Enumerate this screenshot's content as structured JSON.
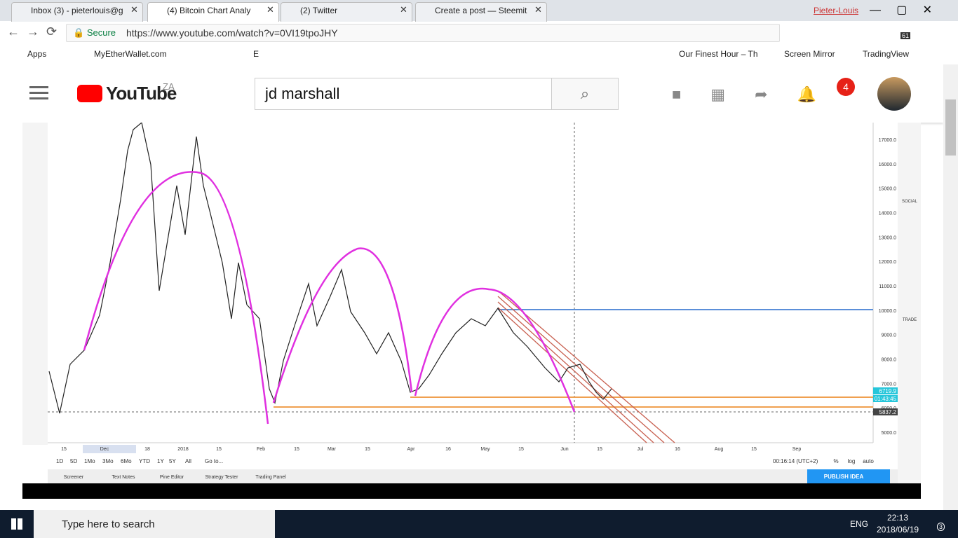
{
  "browser": {
    "tabs": [
      "Inbox (3) - pieterlouis@g",
      "(4) Bitcoin Chart Analy",
      "(2) Twitter",
      "Create a post — Steemit"
    ],
    "user": "Pieter-Louis",
    "secure": "Secure",
    "url": "https://www.youtube.com/watch?v=0VI19tpoJHY",
    "extension_badge": "61",
    "bookmarks": [
      "Apps",
      "MyEtherWallet.com",
      "E",
      "Our Finest Hour – Th",
      "Screen Mirror",
      "TradingView"
    ]
  },
  "youtube": {
    "logo": "YouTube",
    "region": "ZA",
    "search": "jd marshall",
    "notifications": "4"
  },
  "tradingview": {
    "price_labels": [
      "17000.0",
      "16000.0",
      "15000.0",
      "14000.0",
      "13000.0",
      "12000.0",
      "11000.0",
      "10000.0",
      "9000.0",
      "8000.0",
      "7000.0",
      "6000.0",
      "5000.0"
    ],
    "last_price": "6719.9",
    "countdown": "01:43:45",
    "cursor_price": "5837.2",
    "date_labels": [
      "15",
      "Dec",
      "18",
      "2018",
      "15",
      "Feb",
      "15",
      "Mar",
      "15",
      "Apr",
      "16",
      "May",
      "15",
      "Jun",
      "15",
      "Jul",
      "16",
      "Aug",
      "15",
      "Sep"
    ],
    "sidebar_labels": [
      "SOCIAL",
      "TRADE"
    ],
    "timeframes": [
      "1D",
      "5D",
      "1Mo",
      "3Mo",
      "6Mo",
      "YTD",
      "1Y",
      "5Y",
      "All",
      "Go to..."
    ],
    "clock": "00:16:14 (UTC+2)",
    "scale_options": [
      "%",
      "log",
      "auto"
    ],
    "bottom_tabs": [
      "Screener",
      "Text Notes",
      "Pine Editor",
      "Strategy Tester",
      "Trading Panel"
    ],
    "publish": "PUBLISH IDEA"
  },
  "taskbar": {
    "search": "Type here to search",
    "language": "ENG",
    "time": "22:13",
    "date": "2018/06/19",
    "notifications": "3"
  }
}
